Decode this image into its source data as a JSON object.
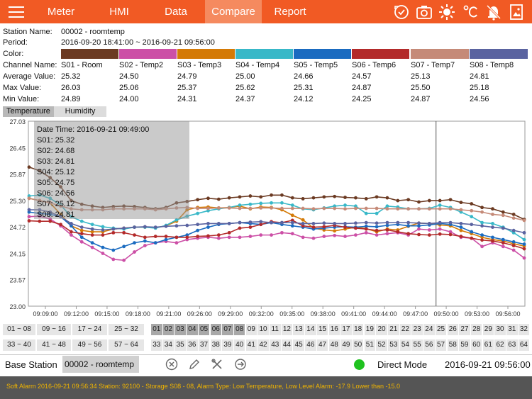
{
  "nav": {
    "tabs": [
      {
        "label": "Meter",
        "active": false
      },
      {
        "label": "HMI",
        "active": false
      },
      {
        "label": "Data",
        "active": false
      },
      {
        "label": "Compare",
        "active": true
      },
      {
        "label": "Report",
        "active": false
      }
    ],
    "icons": [
      "cycle-icon",
      "camera-icon",
      "sun-icon",
      "celsius-icon",
      "alarm-off-icon",
      "image-icon"
    ],
    "bar_color": "#f15a24"
  },
  "info": {
    "station_label": "Station Name:",
    "station_value": "00002   - roomtemp",
    "period_label": "Period:",
    "period_value": "2016-09-20 18:41:00 ~ 2016-09-21 09:56:00",
    "color_label": "Color:",
    "channel_label": "Channel Name:",
    "avg_label": "Average Value:",
    "max_label": "Max Value:",
    "min_label": "Min Value:"
  },
  "channels": [
    {
      "name": "S01 - Room",
      "color": "#6b3a22",
      "avg": "25.32",
      "max": "26.03",
      "min": "24.89"
    },
    {
      "name": "S02 - Temp2",
      "color": "#cc4fa6",
      "avg": "24.50",
      "max": "25.06",
      "min": "24.00"
    },
    {
      "name": "S03 - Temp3",
      "color": "#d47a06",
      "avg": "24.79",
      "max": "25.37",
      "min": "24.31"
    },
    {
      "name": "S04 - Temp4",
      "color": "#38b8c8",
      "avg": "25.00",
      "max": "25.62",
      "min": "24.37"
    },
    {
      "name": "S05 - Temp5",
      "color": "#1a6bc0",
      "avg": "24.66",
      "max": "25.31",
      "min": "24.12"
    },
    {
      "name": "S06 - Temp6",
      "color": "#b32a2a",
      "avg": "24.57",
      "max": "24.87",
      "min": "24.25"
    },
    {
      "name": "S07 - Temp7",
      "color": "#c58a78",
      "avg": "25.13",
      "max": "25.50",
      "min": "24.87"
    },
    {
      "name": "S08 - Temp8",
      "color": "#5a63a0",
      "avg": "24.81",
      "max": "25.18",
      "min": "24.56"
    }
  ],
  "chart_tabs": [
    {
      "label": "Temperature",
      "active": true
    },
    {
      "label": "Humidity",
      "active": false
    }
  ],
  "tooltip": {
    "title": "Date Time: 2016-09-21 09:49:00",
    "lines": [
      "S01: 25.32",
      "S02: 24.68",
      "S03: 24.81",
      "S04: 25.12",
      "S05: 24.75",
      "S06: 24.56",
      "S07: 25.12",
      "S08: 24.81"
    ]
  },
  "chart_data": {
    "type": "line",
    "ylim": [
      23.0,
      27.03
    ],
    "yticks": [
      "27.03",
      "26.45",
      "25.87",
      "25.30",
      "24.72",
      "24.15",
      "23.57",
      "23.00"
    ],
    "xticks": [
      "09:09:00",
      "09:12:00",
      "09:15:00",
      "09:18:00",
      "09:21:00",
      "09:26:00",
      "09:29:00",
      "09:32:00",
      "09:35:00",
      "09:38:00",
      "09:41:00",
      "09:44:00",
      "09:47:00",
      "09:50:00",
      "09:53:00",
      "09:56:00"
    ],
    "cursor_time": "09:49:00",
    "grid": false,
    "series": [
      {
        "name": "S01 - Room",
        "color": "#6b3a22",
        "values": [
          26.03,
          25.95,
          25.8,
          25.6,
          25.3,
          25.22,
          25.18,
          25.15,
          25.17,
          25.18,
          25.17,
          25.15,
          25.12,
          25.15,
          25.25,
          25.28,
          25.32,
          25.35,
          25.33,
          25.36,
          25.38,
          25.4,
          25.38,
          25.42,
          25.42,
          25.36,
          25.34,
          25.36,
          25.38,
          25.39,
          25.37,
          25.36,
          25.34,
          25.38,
          25.36,
          25.3,
          25.32,
          25.27,
          25.3,
          25.3,
          25.32,
          25.26,
          25.23,
          25.15,
          25.12,
          25.05,
          25.0,
          24.89
        ]
      },
      {
        "name": "S02 - Temp2",
        "color": "#cc4fa6",
        "values": [
          24.95,
          24.96,
          24.9,
          24.75,
          24.55,
          24.4,
          24.28,
          24.15,
          24.02,
          24.0,
          24.18,
          24.32,
          24.38,
          24.41,
          24.38,
          24.45,
          24.48,
          24.5,
          24.48,
          24.5,
          24.5,
          24.52,
          24.55,
          24.55,
          24.6,
          24.58,
          24.5,
          24.48,
          24.52,
          24.54,
          24.52,
          24.55,
          24.6,
          24.55,
          24.58,
          24.6,
          24.55,
          24.68,
          24.66,
          24.68,
          24.62,
          24.5,
          24.48,
          24.3,
          24.38,
          24.3,
          24.22,
          24.05
        ]
      },
      {
        "name": "S03 - Temp3",
        "color": "#d47a06",
        "values": [
          25.35,
          25.3,
          25.25,
          25.0,
          24.75,
          24.65,
          24.62,
          24.62,
          24.68,
          24.7,
          24.72,
          24.72,
          24.71,
          24.75,
          24.85,
          25.1,
          25.15,
          25.16,
          25.14,
          25.15,
          25.18,
          25.12,
          25.16,
          25.15,
          25.1,
          24.98,
          24.88,
          24.7,
          24.66,
          24.64,
          24.68,
          24.72,
          24.69,
          24.62,
          24.68,
          24.66,
          24.74,
          24.81,
          24.8,
          24.77,
          24.75,
          24.65,
          24.58,
          24.5,
          24.45,
          24.42,
          24.36,
          24.31
        ]
      },
      {
        "name": "S04 - Temp4",
        "color": "#38b8c8",
        "values": [
          25.4,
          25.42,
          25.35,
          25.2,
          24.95,
          24.85,
          24.78,
          24.73,
          24.7,
          24.68,
          24.72,
          24.72,
          24.7,
          24.76,
          24.88,
          24.96,
          25.02,
          25.08,
          25.12,
          25.15,
          25.2,
          25.22,
          25.24,
          25.25,
          25.25,
          25.2,
          25.12,
          25.1,
          25.14,
          25.18,
          25.2,
          25.18,
          25.02,
          25.02,
          25.18,
          25.16,
          25.12,
          25.12,
          25.13,
          25.2,
          25.15,
          25.05,
          24.95,
          24.82,
          24.8,
          24.72,
          24.6,
          24.45
        ]
      },
      {
        "name": "S05 - Temp5",
        "color": "#1a6bc0",
        "values": [
          25.05,
          25.02,
          25.0,
          24.95,
          24.75,
          24.5,
          24.38,
          24.28,
          24.22,
          24.3,
          24.38,
          24.42,
          24.38,
          24.45,
          24.5,
          24.55,
          24.65,
          24.72,
          24.78,
          24.8,
          24.82,
          24.8,
          24.78,
          24.82,
          24.78,
          24.75,
          24.72,
          24.68,
          24.7,
          24.72,
          24.73,
          24.72,
          24.74,
          24.73,
          24.76,
          24.78,
          24.75,
          24.75,
          24.77,
          24.8,
          24.78,
          24.72,
          24.62,
          24.55,
          24.5,
          24.45,
          24.4,
          24.35
        ]
      },
      {
        "name": "S06 - Temp6",
        "color": "#b32a2a",
        "values": [
          24.86,
          24.85,
          24.85,
          24.78,
          24.62,
          24.58,
          24.55,
          24.55,
          24.6,
          24.6,
          24.55,
          24.5,
          24.52,
          24.52,
          24.5,
          24.5,
          24.52,
          24.53,
          24.55,
          24.6,
          24.7,
          24.72,
          24.78,
          24.84,
          24.82,
          24.87,
          24.75,
          24.72,
          24.73,
          24.76,
          24.72,
          24.7,
          24.68,
          24.65,
          24.66,
          24.62,
          24.58,
          24.56,
          24.55,
          24.57,
          24.56,
          24.52,
          24.48,
          24.44,
          24.42,
          24.38,
          24.32,
          24.25
        ]
      },
      {
        "name": "S07 - Temp7",
        "color": "#c58a78",
        "values": [
          25.35,
          25.3,
          25.25,
          25.18,
          25.12,
          25.1,
          25.1,
          25.1,
          25.12,
          25.12,
          25.12,
          25.12,
          25.1,
          25.12,
          25.14,
          25.15,
          25.13,
          25.13,
          25.14,
          25.14,
          25.13,
          25.13,
          25.14,
          25.14,
          25.13,
          25.13,
          25.13,
          25.12,
          25.13,
          25.13,
          25.12,
          25.13,
          25.13,
          25.13,
          25.12,
          25.12,
          25.12,
          25.12,
          25.12,
          25.12,
          25.12,
          25.1,
          25.08,
          25.05,
          25.0,
          24.98,
          24.92,
          24.87
        ]
      },
      {
        "name": "S08 - Temp8",
        "color": "#5a63a0",
        "values": [
          25.1,
          25.1,
          25.05,
          24.95,
          24.8,
          24.72,
          24.68,
          24.66,
          24.68,
          24.7,
          24.72,
          24.73,
          24.72,
          24.74,
          24.75,
          24.76,
          24.78,
          24.8,
          24.8,
          24.8,
          24.82,
          24.83,
          24.84,
          24.82,
          24.82,
          24.82,
          24.8,
          24.8,
          24.81,
          24.8,
          24.8,
          24.81,
          24.82,
          24.81,
          24.82,
          24.82,
          24.82,
          24.81,
          24.8,
          24.82,
          24.82,
          24.8,
          24.78,
          24.75,
          24.72,
          24.7,
          24.65,
          24.6
        ]
      }
    ]
  },
  "sensor_groups": {
    "row1": [
      "01 ~ 08",
      "09 ~ 16",
      "17 ~ 24",
      "25 ~ 32"
    ],
    "row2": [
      "33 ~ 40",
      "41 ~ 48",
      "49 ~ 56",
      "57 ~ 64"
    ]
  },
  "sensors": {
    "row1": [
      "01",
      "02",
      "03",
      "04",
      "05",
      "06",
      "07",
      "08",
      "09",
      "10",
      "11",
      "12",
      "13",
      "14",
      "15",
      "16",
      "17",
      "18",
      "19",
      "20",
      "21",
      "22",
      "23",
      "24",
      "25",
      "26",
      "27",
      "28",
      "29",
      "30",
      "31",
      "32"
    ],
    "row2": [
      "33",
      "34",
      "35",
      "36",
      "37",
      "38",
      "39",
      "40",
      "41",
      "42",
      "43",
      "44",
      "45",
      "46",
      "47",
      "48",
      "49",
      "50",
      "51",
      "52",
      "53",
      "54",
      "55",
      "56",
      "57",
      "58",
      "59",
      "60",
      "61",
      "62",
      "63",
      "64"
    ],
    "selected": [
      "01",
      "02",
      "03",
      "04",
      "05",
      "06",
      "07",
      "08"
    ]
  },
  "bottom": {
    "base_label": "Base Station",
    "base_value": "00002 - roomtemp",
    "mode_label": "Direct Mode",
    "status_color": "#1fc21f",
    "datetime": "2016-09-21 09:56:00"
  },
  "alarm": {
    "text": "Soft Alarm 2016-09-21 09:56:34 Station: 92100  - Storage S08 - 08, Alarm Type: Low Temperature, Low Level Alarm: -17.9 Lower than -15.0",
    "color": "#f0b400"
  }
}
